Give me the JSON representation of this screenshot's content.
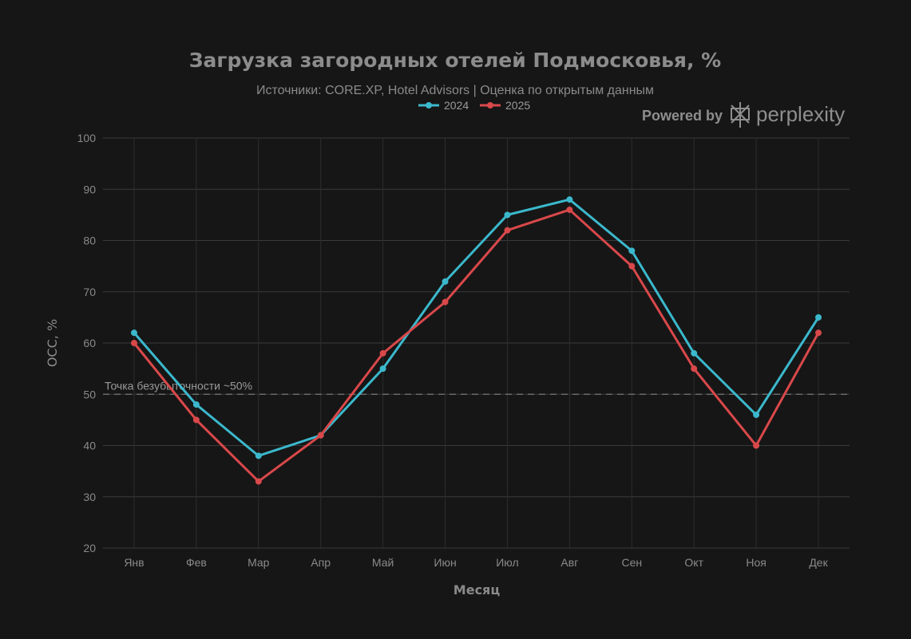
{
  "chart_data": {
    "type": "line",
    "title": "Загрузка загородных отелей Подмосковья, %",
    "subtitle": "Источники: CORE.XP, Hotel Advisors | Оценка по открытым данным",
    "xlabel": "Месяц",
    "ylabel": "OCC, %",
    "categories": [
      "Янв",
      "Фев",
      "Мар",
      "Апр",
      "Май",
      "Июн",
      "Июл",
      "Авг",
      "Сен",
      "Окт",
      "Ноя",
      "Дек"
    ],
    "ylim": [
      20,
      100
    ],
    "yticks": [
      20,
      30,
      40,
      50,
      60,
      70,
      80,
      90,
      100
    ],
    "grid": true,
    "legend_position": "top-center",
    "series": [
      {
        "name": "2024",
        "color": "#3bb8cc",
        "values": [
          62,
          48,
          38,
          42,
          55,
          72,
          85,
          88,
          78,
          58,
          46,
          65
        ]
      },
      {
        "name": "2025",
        "color": "#d9484a",
        "values": [
          60,
          45,
          33,
          42,
          58,
          68,
          82,
          86,
          75,
          55,
          40,
          62
        ]
      }
    ],
    "reference_line": {
      "y": 50,
      "label": "Точка безубыточности ~50%",
      "color": "#6a6a6a"
    }
  },
  "branding": {
    "prefix": "Powered by",
    "name": "perplexity"
  }
}
